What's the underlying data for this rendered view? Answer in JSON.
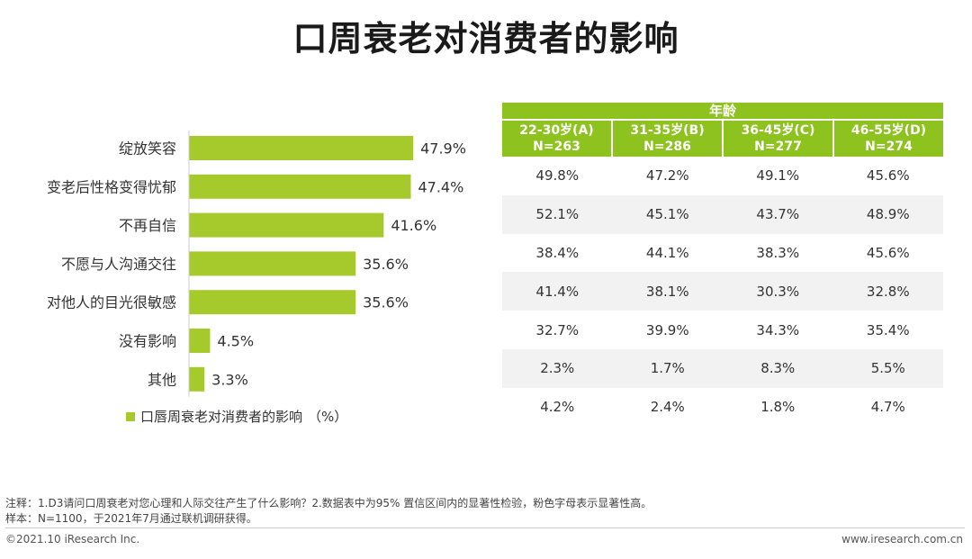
{
  "title": "口周衰老对消费者的影响",
  "colors": {
    "bar": "#a6ca2c",
    "header": "#8dc21f",
    "row_shade": "#f2f2f2"
  },
  "chart_data": {
    "type": "bar",
    "orientation": "horizontal",
    "categories": [
      "绽放笑容",
      "变老后性格变得忧郁",
      "不再自信",
      "不愿与人沟通交往",
      "对他人的目光很敏感",
      "没有影响",
      "其他"
    ],
    "values": [
      47.9,
      47.4,
      41.6,
      35.6,
      35.6,
      4.5,
      3.3
    ],
    "value_labels": [
      "47.9%",
      "47.4%",
      "41.6%",
      "35.6%",
      "35.6%",
      "4.5%",
      "3.3%"
    ],
    "legend": {
      "label": "口唇周衰老对消费者的影响",
      "unit": "（%）"
    },
    "xlim": [
      0,
      50
    ]
  },
  "table": {
    "header": "年龄",
    "groups": [
      {
        "label": "22-30岁(A)",
        "n": "N=263"
      },
      {
        "label": "31-35岁(B)",
        "n": "N=286"
      },
      {
        "label": "36-45岁(C)",
        "n": "N=277"
      },
      {
        "label": "46-55岁(D)",
        "n": "N=274"
      }
    ],
    "rows": [
      [
        "49.8%",
        "47.2%",
        "49.1%",
        "45.6%"
      ],
      [
        "52.1%",
        "45.1%",
        "43.7%",
        "48.9%"
      ],
      [
        "38.4%",
        "44.1%",
        "38.3%",
        "45.6%"
      ],
      [
        "41.4%",
        "38.1%",
        "30.3%",
        "32.8%"
      ],
      [
        "32.7%",
        "39.9%",
        "34.3%",
        "35.4%"
      ],
      [
        "2.3%",
        "1.7%",
        "8.3%",
        "5.5%"
      ],
      [
        "4.2%",
        "2.4%",
        "1.8%",
        "4.7%"
      ]
    ]
  },
  "notes": {
    "line1": "注释：1.D3请问口周衰老对您心理和人际交往产生了什么影响？2.数据表中为95% 置信区间内的显著性检验，粉色字母表示显著性高。",
    "line2": "样本：N=1100，于2021年7月通过联机调研获得。"
  },
  "footer": {
    "copyright": "©2021.10 iResearch Inc.",
    "website": "www.iresearch.com.cn"
  }
}
